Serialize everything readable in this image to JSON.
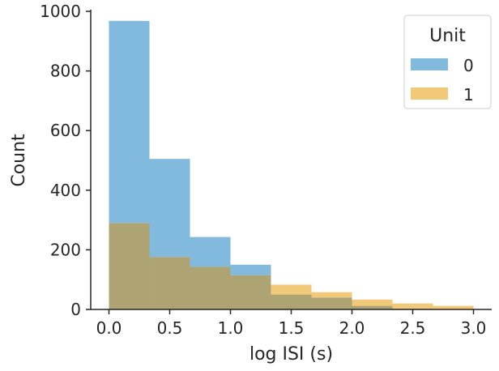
{
  "chart_data": {
    "type": "bar",
    "title": "",
    "xlabel": "log ISI (s)",
    "ylabel": "Count",
    "xlim": [
      -0.15,
      3.15
    ],
    "ylim": [
      0,
      1000
    ],
    "xticks": [
      "0.0",
      "0.5",
      "1.0",
      "1.5",
      "2.0",
      "2.5",
      "3.0"
    ],
    "yticks": [
      "0",
      "200",
      "400",
      "600",
      "800",
      "1000"
    ],
    "bin_edges": [
      0.0,
      0.3333,
      0.6667,
      1.0,
      1.3333,
      1.6667,
      2.0,
      2.3333,
      2.6667,
      3.0
    ],
    "series": [
      {
        "name": "0",
        "color": "#6baed6",
        "values": [
          968,
          505,
          243,
          150,
          50,
          40,
          12,
          3,
          0
        ]
      },
      {
        "name": "1",
        "color": "#f0c060",
        "values": [
          290,
          176,
          143,
          115,
          83,
          58,
          33,
          20,
          12
        ]
      }
    ],
    "overlap_color": "#ada373",
    "grid": false,
    "legend": {
      "title": "Unit",
      "position": "top-right"
    }
  }
}
